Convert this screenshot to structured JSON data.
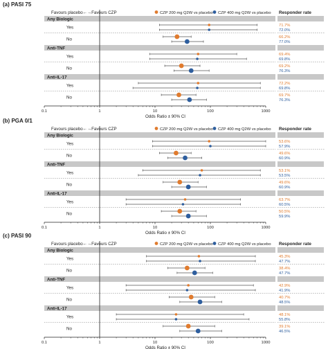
{
  "colors": {
    "czp200": "#E07B2E",
    "czp400": "#2E5E9E",
    "band": "#C8C8C8",
    "ci": "#555555",
    "axis": "#222222",
    "text": "#222222"
  },
  "legend": {
    "czp200": "CZP 200 mg Q2W vs placebo",
    "czp400": "CZP 400 mg Q2W vs placebo"
  },
  "header": {
    "favours": "Favours placebo←→Favours CZP",
    "responder": "Responder rate"
  },
  "chart_data": [
    {
      "type": "forest",
      "title": "(a) PASI 75",
      "xlabel": "Odds Ratio ± 90% CI",
      "xscale": "log",
      "xlim": [
        0.1,
        1000
      ],
      "xticks": [
        "0.1",
        "1",
        "10",
        "100",
        "1000"
      ],
      "reference_line": 1,
      "groups": [
        {
          "label": "Any Biologic",
          "rows": [
            {
              "label": "Yes",
              "czp200": {
                "or": 95,
                "lo": 12,
                "hi": 700
              },
              "czp400": {
                "or": 95,
                "lo": 12,
                "hi": 700
              },
              "rate200": "71.7%",
              "rate400": "72.0%"
            },
            {
              "label": "No",
              "czp200": {
                "or": 25,
                "lo": 14,
                "hi": 45
              },
              "czp400": {
                "or": 38,
                "lo": 20,
                "hi": 75
              },
              "rate200": "66.2%",
              "rate400": "77.0%"
            }
          ]
        },
        {
          "label": "Anti-TNF",
          "rows": [
            {
              "label": "Yes",
              "czp200": {
                "or": 60,
                "lo": 8,
                "hi": 300
              },
              "czp400": {
                "or": 58,
                "lo": 8,
                "hi": 450
              },
              "rate200": "69.4%",
              "rate400": "69.8%"
            },
            {
              "label": "No",
              "czp200": {
                "or": 30,
                "lo": 15,
                "hi": 65
              },
              "czp400": {
                "or": 45,
                "lo": 22,
                "hi": 95
              },
              "rate200": "69.2%",
              "rate400": "76.3%"
            }
          ]
        },
        {
          "label": "Anti-IL-17",
          "rows": [
            {
              "label": "Yes",
              "czp200": {
                "or": 60,
                "lo": 5,
                "hi": 800
              },
              "czp400": {
                "or": 58,
                "lo": 4,
                "hi": 800
              },
              "rate200": "72.2%",
              "rate400": "69.8%"
            },
            {
              "label": "No",
              "czp200": {
                "or": 27,
                "lo": 13,
                "hi": 55
              },
              "czp400": {
                "or": 42,
                "lo": 20,
                "hi": 85
              },
              "rate200": "69.7%",
              "rate400": "76.3%"
            }
          ]
        }
      ]
    },
    {
      "type": "forest",
      "title": "(b) PGA 0/1",
      "xlabel": "Odds Ratio ± 90% CI",
      "xscale": "log",
      "xlim": [
        0.1,
        1000
      ],
      "xticks": [
        "0.1",
        "1",
        "10",
        "100",
        "1000"
      ],
      "reference_line": 1,
      "groups": [
        {
          "label": "Any Biologic",
          "rows": [
            {
              "label": "Yes",
              "czp200": {
                "or": 95,
                "lo": 9,
                "hi": 1000
              },
              "czp400": {
                "or": 100,
                "lo": 9,
                "hi": 1000
              },
              "rate200": "53.6%",
              "rate400": "57.9%"
            },
            {
              "label": "No",
              "czp200": {
                "or": 24,
                "lo": 12,
                "hi": 45
              },
              "czp400": {
                "or": 35,
                "lo": 17,
                "hi": 70
              },
              "rate200": "49.6%",
              "rate400": "60.9%"
            }
          ]
        },
        {
          "label": "Anti-TNF",
          "rows": [
            {
              "label": "Yes",
              "czp200": {
                "or": 70,
                "lo": 6,
                "hi": 800
              },
              "czp400": {
                "or": 65,
                "lo": 5,
                "hi": 800
              },
              "rate200": "53.1%",
              "rate400": "53.5%"
            },
            {
              "label": "No",
              "czp200": {
                "or": 28,
                "lo": 14,
                "hi": 60
              },
              "czp400": {
                "or": 40,
                "lo": 20,
                "hi": 85
              },
              "rate200": "49.6%",
              "rate400": "60.9%"
            }
          ]
        },
        {
          "label": "Anti-IL-17",
          "rows": [
            {
              "label": "Yes",
              "czp200": {
                "or": 35,
                "lo": 3,
                "hi": 350
              },
              "czp400": {
                "or": 32,
                "lo": 3,
                "hi": 350
              },
              "rate200": "63.7%",
              "rate400": "60.5%"
            },
            {
              "label": "No",
              "czp200": {
                "or": 28,
                "lo": 13,
                "hi": 55
              },
              "czp400": {
                "or": 40,
                "lo": 20,
                "hi": 85
              },
              "rate200": "50.5%",
              "rate400": "59.9%"
            }
          ]
        }
      ]
    },
    {
      "type": "forest",
      "title": "(c) PASI 90",
      "xlabel": "Odds Ratio ± 90% CI",
      "xscale": "log",
      "xlim": [
        0.1,
        1000
      ],
      "xticks": [
        "0.1",
        "1",
        "10",
        "100",
        "1000"
      ],
      "reference_line": 1,
      "groups": [
        {
          "label": "Any Biologic",
          "rows": [
            {
              "label": "Yes",
              "czp200": {
                "or": 62,
                "lo": 7,
                "hi": 650
              },
              "czp400": {
                "or": 65,
                "lo": 7,
                "hi": 650
              },
              "rate200": "45.3%",
              "rate400": "47.7%"
            },
            {
              "label": "No",
              "czp200": {
                "or": 38,
                "lo": 17,
                "hi": 80
              },
              "czp400": {
                "or": 52,
                "lo": 25,
                "hi": 110
              },
              "rate200": "38.4%",
              "rate400": "47.7%"
            }
          ]
        },
        {
          "label": "Anti-TNF",
          "rows": [
            {
              "label": "Yes",
              "czp200": {
                "or": 40,
                "lo": 3,
                "hi": 600
              },
              "czp400": {
                "or": 38,
                "lo": 3,
                "hi": 650
              },
              "rate200": "42.9%",
              "rate400": "41.9%"
            },
            {
              "label": "No",
              "czp200": {
                "or": 45,
                "lo": 18,
                "hi": 120
              },
              "czp400": {
                "or": 65,
                "lo": 28,
                "hi": 160
              },
              "rate200": "40.7%",
              "rate400": "48.5%"
            }
          ]
        },
        {
          "label": "Anti-IL-17",
          "rows": [
            {
              "label": "Yes",
              "czp200": {
                "or": 24,
                "lo": 2,
                "hi": 400
              },
              "czp400": {
                "or": 24,
                "lo": 2,
                "hi": 500
              },
              "rate200": "48.1%",
              "rate400": "55.8%"
            },
            {
              "label": "No",
              "czp200": {
                "or": 40,
                "lo": 14,
                "hi": 120
              },
              "czp400": {
                "or": 60,
                "lo": 28,
                "hi": 160
              },
              "rate200": "39.1%",
              "rate400": "46.5%"
            }
          ]
        }
      ]
    }
  ]
}
